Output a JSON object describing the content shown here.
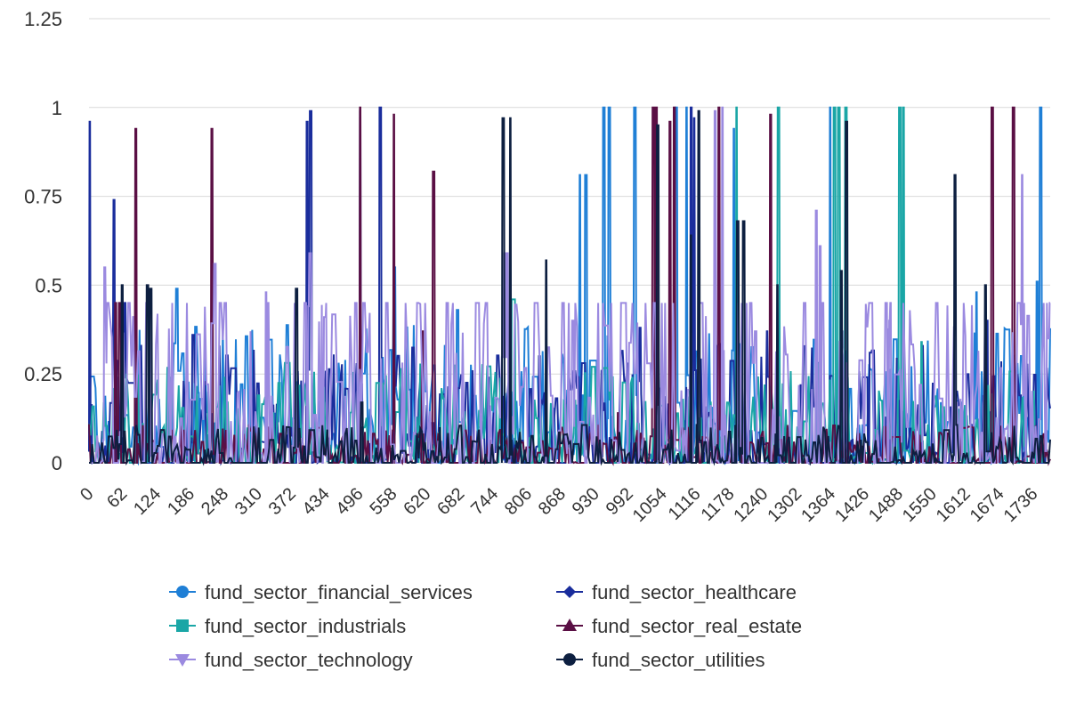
{
  "chart_data": {
    "type": "line",
    "title": "",
    "xlabel": "",
    "ylabel": "",
    "ylim": [
      0,
      1.25
    ],
    "xlim": [
      0,
      1767
    ],
    "y_ticks": [
      "0",
      "0.25",
      "0.5",
      "0.75",
      "1",
      "1.25"
    ],
    "x_ticks": [
      "0",
      "62",
      "124",
      "186",
      "248",
      "310",
      "372",
      "434",
      "496",
      "558",
      "620",
      "682",
      "744",
      "806",
      "868",
      "930",
      "992",
      "1054",
      "1116",
      "1178",
      "1240",
      "1302",
      "1364",
      "1426",
      "1488",
      "1550",
      "1612",
      "1674",
      "1736"
    ],
    "grid": true,
    "legend_position": "bottom",
    "series": [
      {
        "name": "fund_sector_financial_services",
        "color": "#1f7fd6",
        "marker": "circle",
        "seed": 11,
        "base": 0.12,
        "spread": 0.12,
        "spikes": [
          [
            50,
            0.24
          ],
          [
            160,
            0.49
          ],
          [
            205,
            0.18
          ],
          [
            560,
            0.55
          ],
          [
            676,
            0.43
          ],
          [
            902,
            0.81
          ],
          [
            912,
            0.81
          ],
          [
            945,
            1.0
          ],
          [
            955,
            1.0
          ],
          [
            1002,
            1.0
          ],
          [
            1078,
            1.0
          ],
          [
            1098,
            1.0
          ],
          [
            1185,
            0.94
          ],
          [
            1362,
            1.0
          ],
          [
            1631,
            0.48
          ],
          [
            1742,
            0.51
          ],
          [
            1748,
            1.0
          ]
        ]
      },
      {
        "name": "fund_sector_healthcare",
        "color": "#1a2d9c",
        "marker": "diamond",
        "seed": 23,
        "base": 0.09,
        "spread": 0.11,
        "spikes": [
          [
            1,
            0.96
          ],
          [
            45,
            0.74
          ],
          [
            65,
            0.45
          ],
          [
            190,
            0.36
          ],
          [
            400,
            0.96
          ],
          [
            406,
            0.99
          ],
          [
            498,
            0.99
          ],
          [
            534,
            1.0
          ],
          [
            732,
            0.24
          ],
          [
            827,
            0.3
          ],
          [
            1012,
            0.38
          ],
          [
            1106,
            1.0
          ],
          [
            1112,
            0.97
          ],
          [
            1246,
            0.37
          ],
          [
            1384,
            0.37
          ],
          [
            1435,
            0.31
          ],
          [
            1650,
            0.4
          ]
        ]
      },
      {
        "name": "fund_sector_industrials",
        "color": "#1aa6a6",
        "marker": "square",
        "seed": 37,
        "base": 0.08,
        "spread": 0.09,
        "spikes": [
          [
            150,
            0.24
          ],
          [
            310,
            0.19
          ],
          [
            777,
            0.46
          ],
          [
            780,
            0.46
          ],
          [
            1190,
            1.0
          ],
          [
            1266,
            1.0
          ],
          [
            1369,
            1.0
          ],
          [
            1377,
            1.0
          ],
          [
            1390,
            1.0
          ],
          [
            1489,
            1.0
          ],
          [
            1496,
            1.0
          ],
          [
            1530,
            0.34
          ],
          [
            1610,
            0.16
          ]
        ]
      },
      {
        "name": "fund_sector_real_estate",
        "color": "#5a0f44",
        "marker": "triangle-up",
        "seed": 41,
        "base": 0.02,
        "spread": 0.04,
        "spikes": [
          [
            48,
            0.45
          ],
          [
            55,
            0.45
          ],
          [
            85,
            0.94
          ],
          [
            225,
            0.94
          ],
          [
            498,
            1.0
          ],
          [
            560,
            0.98
          ],
          [
            612,
            0.37
          ],
          [
            632,
            0.82
          ],
          [
            972,
            0.14
          ],
          [
            1036,
            1.0
          ],
          [
            1042,
            1.0
          ],
          [
            1067,
            0.96
          ],
          [
            1075,
            1.0
          ],
          [
            1157,
            1.0
          ],
          [
            1252,
            0.98
          ],
          [
            1659,
            1.0
          ],
          [
            1698,
            1.0
          ]
        ]
      },
      {
        "name": "fund_sector_technology",
        "color": "#9b8ae0",
        "marker": "triangle-down",
        "seed": 53,
        "base": 0.16,
        "spread": 0.22,
        "spikes": [
          [
            28,
            0.55
          ],
          [
            230,
            0.56
          ],
          [
            325,
            0.48
          ],
          [
            405,
            0.59
          ],
          [
            432,
            0.41
          ],
          [
            763,
            0.59
          ],
          [
            768,
            0.59
          ],
          [
            888,
            0.4
          ],
          [
            1150,
            0.99
          ],
          [
            1164,
            1.0
          ],
          [
            1224,
            0.37
          ],
          [
            1336,
            0.71
          ],
          [
            1343,
            0.61
          ],
          [
            1471,
            0.4
          ],
          [
            1715,
            0.81
          ],
          [
            1762,
            0.35
          ]
        ]
      },
      {
        "name": "fund_sector_utilities",
        "color": "#0d1f40",
        "marker": "circle",
        "seed": 67,
        "base": 0.02,
        "spread": 0.04,
        "spikes": [
          [
            60,
            0.5
          ],
          [
            106,
            0.5
          ],
          [
            112,
            0.49
          ],
          [
            380,
            0.49
          ],
          [
            500,
            0.17
          ],
          [
            760,
            0.97
          ],
          [
            774,
            0.97
          ],
          [
            840,
            0.57
          ],
          [
            1044,
            0.95
          ],
          [
            1106,
            0.64
          ],
          [
            1120,
            0.99
          ],
          [
            1191,
            0.68
          ],
          [
            1202,
            0.68
          ],
          [
            1265,
            0.5
          ],
          [
            1382,
            0.54
          ],
          [
            1391,
            0.96
          ],
          [
            1591,
            0.81
          ],
          [
            1647,
            0.5
          ]
        ]
      }
    ]
  }
}
